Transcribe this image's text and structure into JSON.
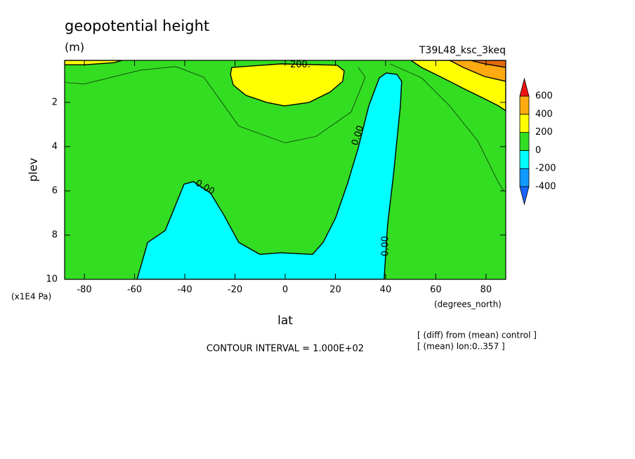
{
  "chart_data": {
    "type": "contour",
    "title": "geopotential height",
    "subtitle": "(m)",
    "run_label": "T39L48_ksc_3keq",
    "xlabel": "lat",
    "ylabel": "plev",
    "x_unit": "(degrees_north)",
    "y_unit": "(x1E4 Pa)",
    "footer": "CONTOUR INTERVAL = 1.000E+02",
    "notes": [
      "[ (diff) from (mean) control ]",
      "[ (mean) lon:0..357 ]"
    ],
    "xlim": [
      -87.86,
      87.86
    ],
    "ylim": [
      10,
      0.1
    ],
    "xticks": [
      -80,
      -60,
      -40,
      -20,
      0,
      20,
      40,
      60,
      80
    ],
    "yticks": [
      2,
      4,
      6,
      8,
      10
    ],
    "colorbar": {
      "levels": [
        -400,
        -200,
        0,
        200,
        400,
        600
      ],
      "colors": [
        "#1a66ff",
        "#1199ff",
        "#00ffff",
        "#33dd22",
        "#ffff00",
        "#ffaa11",
        "#ee1111"
      ]
    },
    "regions": [
      {
        "level": 0,
        "color": "#33dd22",
        "outline": false,
        "points": [
          [
            -87.86,
            0.1
          ],
          [
            87.86,
            0.1
          ],
          [
            87.86,
            10
          ],
          [
            -87.86,
            10
          ]
        ]
      },
      {
        "level": 200,
        "color": "#ffff00",
        "outline": true,
        "points": [
          [
            -21.3,
            0.42
          ],
          [
            -1.7,
            0.26
          ],
          [
            20.7,
            0.32
          ],
          [
            23.5,
            0.58
          ],
          [
            22.9,
            1.05
          ],
          [
            17.9,
            1.53
          ],
          [
            9.5,
            2.0
          ],
          [
            -0.3,
            2.16
          ],
          [
            -7.3,
            2.0
          ],
          [
            -15.7,
            1.68
          ],
          [
            -20.7,
            1.21
          ],
          [
            -21.8,
            0.73
          ]
        ]
      },
      {
        "level": -200,
        "color": "#00ffff",
        "outline": true,
        "points": [
          [
            -59.0,
            10
          ],
          [
            -54.8,
            8.33
          ],
          [
            -47.8,
            7.79
          ],
          [
            -40.3,
            5.7
          ],
          [
            -36.6,
            5.58
          ],
          [
            -29.7,
            6.11
          ],
          [
            -24.6,
            7.06
          ],
          [
            -18.5,
            8.33
          ],
          [
            -10.1,
            8.87
          ],
          [
            -1.7,
            8.8
          ],
          [
            10.9,
            8.87
          ],
          [
            15.1,
            8.33
          ],
          [
            20.1,
            7.22
          ],
          [
            24.9,
            5.64
          ],
          [
            29.1,
            4.06
          ],
          [
            33.3,
            2.16
          ],
          [
            37.5,
            0.89
          ],
          [
            40.3,
            0.67
          ],
          [
            44.5,
            0.73
          ],
          [
            46.4,
            1.05
          ],
          [
            45.9,
            2.16
          ],
          [
            43.1,
            5.32
          ],
          [
            40.8,
            7.54
          ],
          [
            39.4,
            10
          ]
        ]
      },
      {
        "level": 200,
        "color": "#ffff00",
        "outline": true,
        "points": [
          [
            -87.86,
            0.1
          ],
          [
            -65,
            0.1
          ],
          [
            -68,
            0.2
          ],
          [
            -80,
            0.3
          ],
          [
            -87.86,
            0.3
          ]
        ]
      },
      {
        "level": 200,
        "color": "#ffff00",
        "outline": true,
        "points": [
          [
            50.1,
            0.1
          ],
          [
            54.3,
            0.42
          ],
          [
            62.7,
            0.89
          ],
          [
            71.0,
            1.37
          ],
          [
            79.4,
            1.84
          ],
          [
            85.0,
            2.16
          ],
          [
            87.86,
            2.38
          ],
          [
            87.86,
            0.1
          ]
        ]
      },
      {
        "level": 400,
        "color": "#ffaa11",
        "outline": true,
        "points": [
          [
            65.5,
            0.1
          ],
          [
            71.0,
            0.42
          ],
          [
            79.4,
            0.83
          ],
          [
            87.86,
            1.05
          ],
          [
            87.86,
            0.1
          ]
        ]
      },
      {
        "level": 600,
        "color": "#e06a10",
        "outline": true,
        "points": [
          [
            73.8,
            0.1
          ],
          [
            79.4,
            0.26
          ],
          [
            87.86,
            0.42
          ],
          [
            87.86,
            0.1
          ]
        ]
      }
    ],
    "contour_lines": [
      {
        "level": 100,
        "points": [
          [
            -87.86,
            1.1
          ],
          [
            -80,
            1.17
          ],
          [
            -57.6,
            0.54
          ],
          [
            -43.6,
            0.38
          ],
          [
            -32.4,
            0.86
          ],
          [
            -18.5,
            3.07
          ],
          [
            0,
            3.83
          ],
          [
            12.3,
            3.54
          ],
          [
            26.3,
            2.43
          ],
          [
            31.9,
            0.86
          ],
          [
            29.1,
            0.42
          ]
        ]
      },
      {
        "level": 100,
        "points": [
          [
            41.7,
            0.26
          ],
          [
            54.3,
            0.89
          ],
          [
            65.5,
            2.16
          ],
          [
            76.7,
            3.74
          ],
          [
            85.0,
            5.64
          ],
          [
            87.1,
            6.0
          ]
        ]
      }
    ],
    "contour_labels": [
      {
        "text": "200.",
        "lat": 6,
        "plev": 0.3,
        "angle": 0
      },
      {
        "text": "0.00",
        "lat": -32,
        "plev": 5.85,
        "angle": 30
      },
      {
        "text": "0.00",
        "lat": 29,
        "plev": 3.5,
        "angle": -72
      },
      {
        "text": "0.00",
        "lat": 40,
        "plev": 8.5,
        "angle": -90
      }
    ]
  }
}
